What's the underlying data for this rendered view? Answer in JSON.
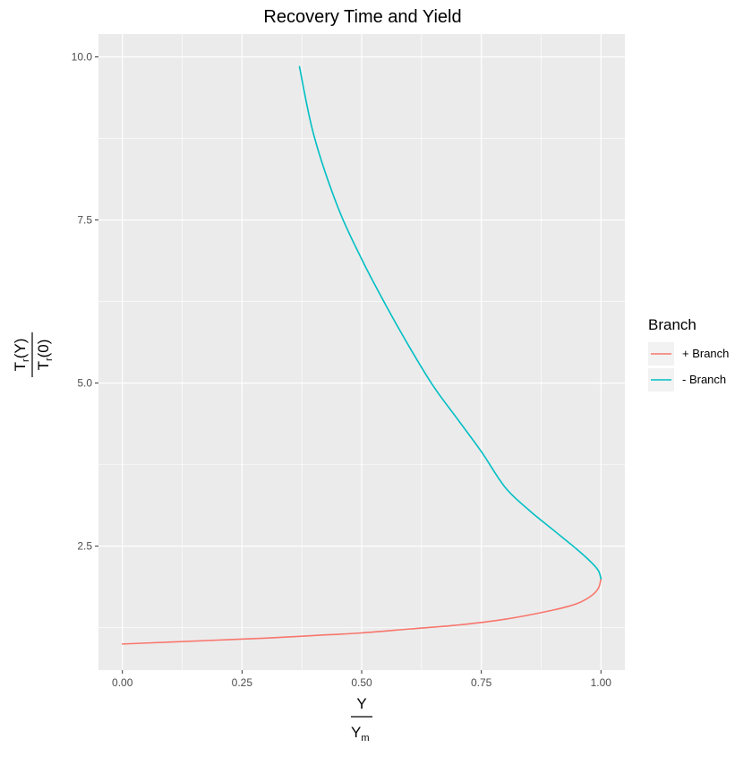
{
  "chart_data": {
    "type": "line",
    "title": "Recovery Time and Yield",
    "xlabel": {
      "numerator": "Y",
      "denominator_base": "Y",
      "denominator_sub": "m"
    },
    "ylabel": {
      "numerator_base": "T",
      "numerator_sub": "r",
      "numerator_rest": "(Y)",
      "denominator_base": "T",
      "denominator_sub": "r",
      "denominator_rest": "(0)"
    },
    "xlim": [
      -0.05,
      1.05
    ],
    "ylim": [
      0.6,
      10.35
    ],
    "x_ticks": [
      {
        "value": 0,
        "label": "0.00"
      },
      {
        "value": 0.25,
        "label": "0.25"
      },
      {
        "value": 0.5,
        "label": "0.50"
      },
      {
        "value": 0.75,
        "label": "0.75"
      },
      {
        "value": 1,
        "label": "1.00"
      }
    ],
    "y_ticks": [
      {
        "value": 2.5,
        "label": "2.5"
      },
      {
        "value": 5,
        "label": "5.0"
      },
      {
        "value": 7.5,
        "label": "7.5"
      },
      {
        "value": 10,
        "label": "10.0"
      }
    ],
    "grid": true,
    "legend": {
      "title": "Branch",
      "position": "right"
    },
    "series": [
      {
        "name": "+ Branch",
        "color": "#F8766D",
        "points": [
          [
            0.0,
            1.0
          ],
          [
            0.1,
            1.03
          ],
          [
            0.2,
            1.06
          ],
          [
            0.3,
            1.09
          ],
          [
            0.4,
            1.13
          ],
          [
            0.5,
            1.17
          ],
          [
            0.6,
            1.23
          ],
          [
            0.7,
            1.29
          ],
          [
            0.8,
            1.38
          ],
          [
            0.9,
            1.52
          ],
          [
            0.95,
            1.62
          ],
          [
            0.98,
            1.74
          ],
          [
            0.995,
            1.86
          ],
          [
            1.0,
            2.0
          ]
        ]
      },
      {
        "name": "- Branch",
        "color": "#00BFC4",
        "points": [
          [
            1.0,
            2.0
          ],
          [
            0.995,
            2.12
          ],
          [
            0.98,
            2.25
          ],
          [
            0.95,
            2.45
          ],
          [
            0.9,
            2.75
          ],
          [
            0.85,
            3.05
          ],
          [
            0.8,
            3.4
          ],
          [
            0.75,
            3.95
          ],
          [
            0.7,
            4.45
          ],
          [
            0.65,
            4.95
          ],
          [
            0.6,
            5.55
          ],
          [
            0.55,
            6.2
          ],
          [
            0.5,
            6.9
          ],
          [
            0.45,
            7.7
          ],
          [
            0.4,
            8.8
          ],
          [
            0.37,
            9.85
          ]
        ]
      }
    ]
  },
  "colors": {
    "panel_background": "#EBEBEB",
    "grid_major": "#FFFFFF",
    "axis_text": "#4D4D4D",
    "tick_mark": "#333333"
  }
}
